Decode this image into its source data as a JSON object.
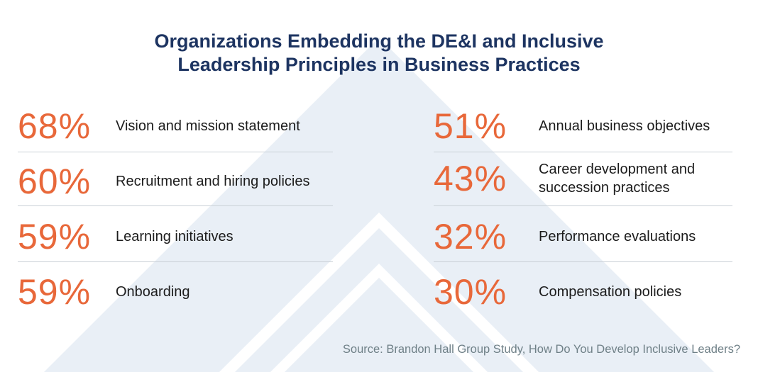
{
  "title_line1": "Organizations Embedding the DE&I and Inclusive",
  "title_line2": "Leadership Principles in Business Practices",
  "colors": {
    "title": "#1d3461",
    "percent": "#e8683a",
    "background_shape": "#e9eff6",
    "divider": "#c9d0d6",
    "source": "#6f8087"
  },
  "left": [
    {
      "value": "68%",
      "label": "Vision and mission statement"
    },
    {
      "value": "60%",
      "label": "Recruitment and hiring policies"
    },
    {
      "value": "59%",
      "label": "Learning initiatives"
    },
    {
      "value": "59%",
      "label": "Onboarding"
    }
  ],
  "right": [
    {
      "value": "51%",
      "label": "Annual business objectives"
    },
    {
      "value": "43%",
      "label": "Career development and\nsuccession practices"
    },
    {
      "value": "32%",
      "label": "Performance evaluations"
    },
    {
      "value": "30%",
      "label": "Compensation policies"
    }
  ],
  "source": "Source: Brandon Hall Group Study, How Do You Develop Inclusive Leaders?",
  "chart_data": {
    "type": "table",
    "title": "Organizations Embedding the DE&I and Inclusive Leadership Principles in Business Practices",
    "categories": [
      "Vision and mission statement",
      "Recruitment and hiring policies",
      "Learning initiatives",
      "Onboarding",
      "Annual business objectives",
      "Career development and succession practices",
      "Performance evaluations",
      "Compensation policies"
    ],
    "values": [
      68,
      60,
      59,
      59,
      51,
      43,
      32,
      30
    ],
    "unit": "%"
  }
}
